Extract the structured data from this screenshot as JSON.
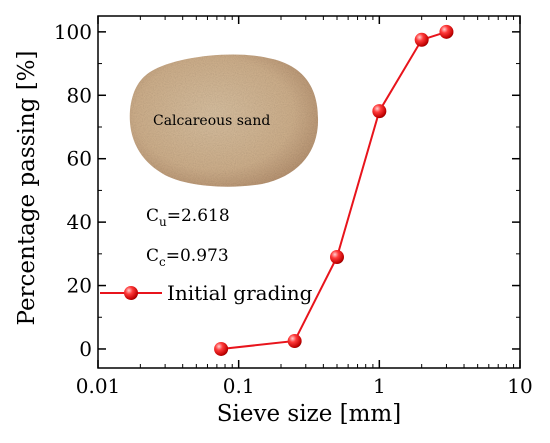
{
  "chart_data": {
    "type": "line",
    "title": "",
    "xlabel": "Sieve size [mm]",
    "ylabel": "Percentage passing [%]",
    "x_scale": "log",
    "xlim": [
      0.01,
      10
    ],
    "ylim": [
      -6,
      105
    ],
    "x_ticks": [
      0.01,
      0.1,
      1,
      10
    ],
    "x_tick_labels": [
      "0.01",
      "0.1",
      "1",
      "10"
    ],
    "y_ticks": [
      0,
      20,
      40,
      60,
      80,
      100
    ],
    "y_tick_labels": [
      "0",
      "20",
      "40",
      "60",
      "80",
      "100"
    ],
    "grid": false,
    "legend": "left",
    "series": [
      {
        "name": "Initial grading",
        "color": "#e8141c",
        "marker": "sphere",
        "x": [
          0.075,
          0.25,
          0.5,
          1,
          2,
          3
        ],
        "y": [
          0,
          2.5,
          29,
          75,
          97.5,
          100
        ]
      }
    ],
    "annotations": {
      "photo_label": "Calcareous sand",
      "cu": {
        "symbol": "C",
        "subscript": "u",
        "value": "=2.618"
      },
      "cc": {
        "symbol": "C",
        "subscript": "c",
        "value": "=0.973"
      }
    }
  }
}
